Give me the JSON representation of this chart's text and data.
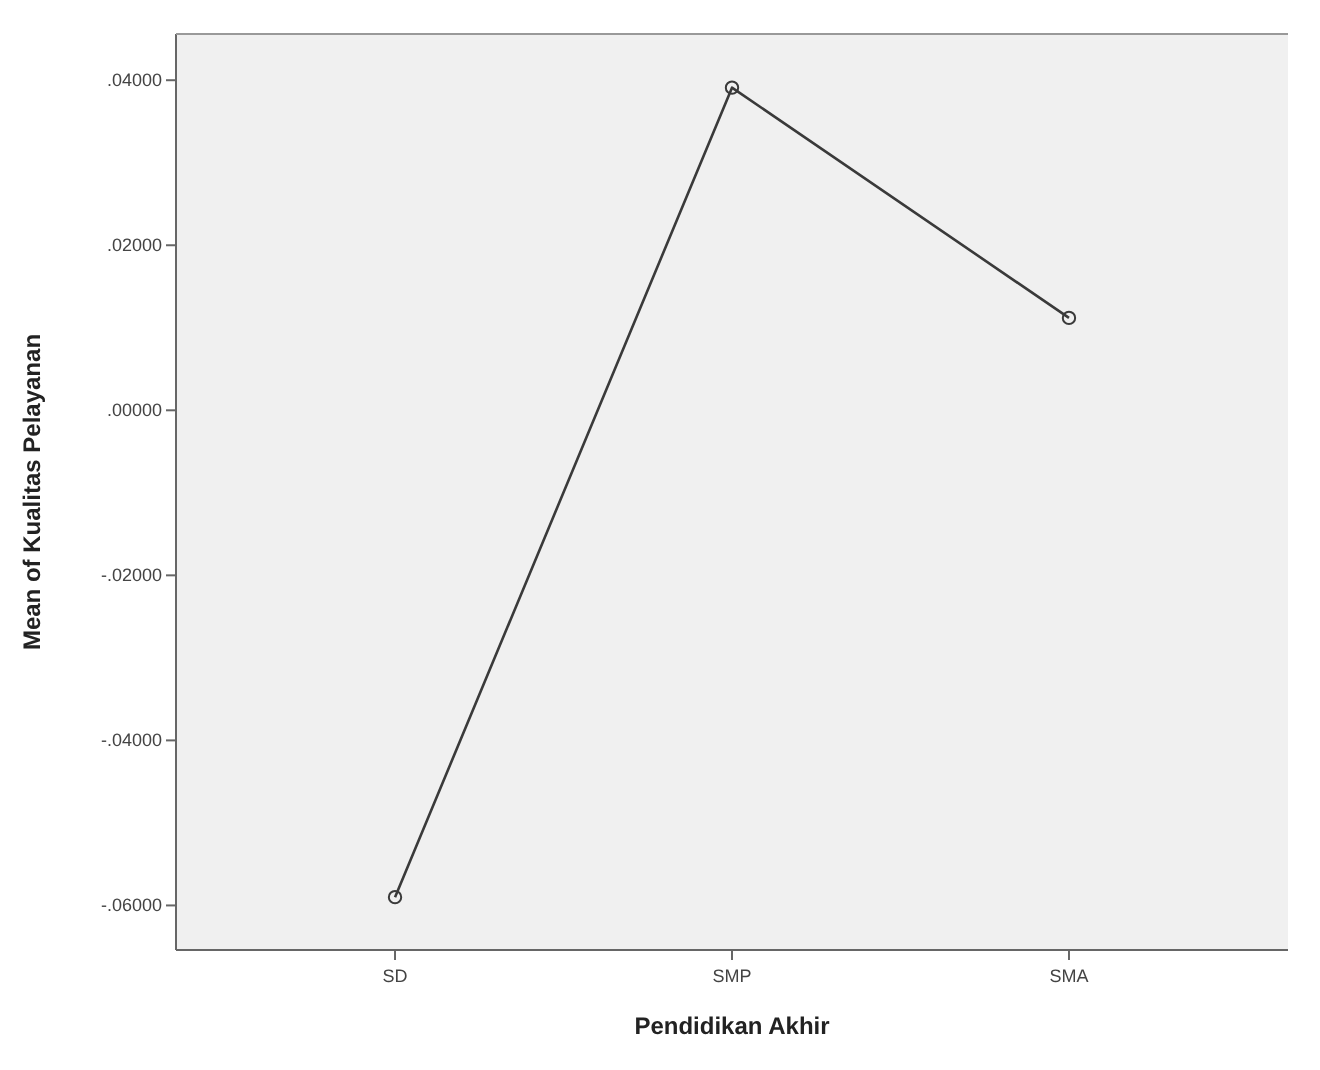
{
  "chart_data": {
    "type": "line",
    "xlabel": "Pendidikan Akhir",
    "ylabel": "Mean of Kualitas Pelayanan",
    "categories": [
      "SD",
      "SMP",
      "SMA"
    ],
    "series": [
      {
        "color": "#3a3a3a",
        "values": [
          -0.059,
          0.0391,
          0.0112
        ]
      }
    ],
    "ylim": [
      -0.0654,
      0.0456
    ],
    "yticks": [
      {
        "value": -0.06,
        "label": "-.06000"
      },
      {
        "value": -0.04,
        "label": "-.04000"
      },
      {
        "value": -0.02,
        "label": "-.02000"
      },
      {
        "value": 0,
        "label": ".00000"
      },
      {
        "value": 0.02,
        "label": ".02000"
      },
      {
        "value": 0.04,
        "label": ".04000"
      }
    ],
    "marker": "circle",
    "grid": false
  }
}
